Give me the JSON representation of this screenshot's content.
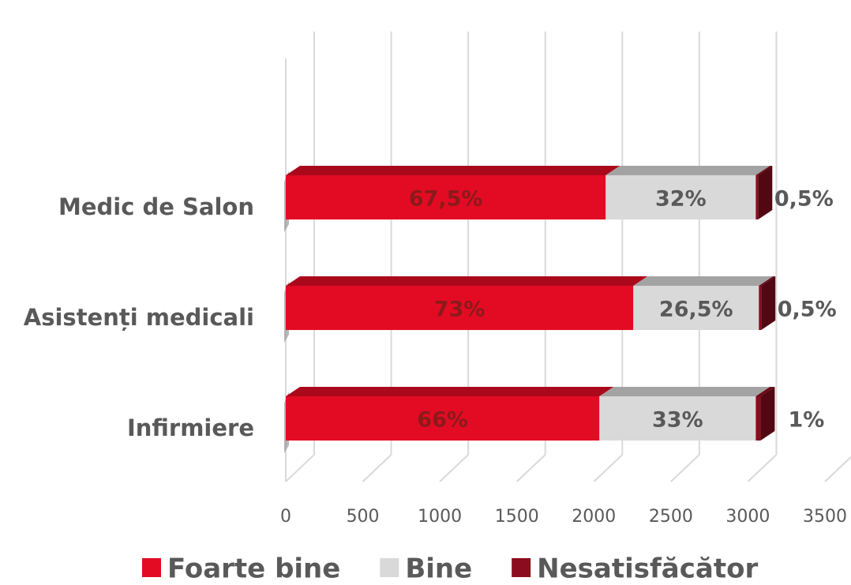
{
  "chart_data": {
    "type": "bar3d_stacked_horizontal",
    "categories": [
      "Medic de Salon",
      "Asistenți medicali",
      "Infirmiere"
    ],
    "series": [
      {
        "name": "Foarte bine",
        "color": "#e30b24",
        "label_color": "#8b1a1a",
        "values": [
          2077,
          2256,
          2036
        ],
        "shares": [
          67.5,
          73,
          66
        ],
        "share_labels": [
          "67,5%",
          "73%",
          "66%"
        ]
      },
      {
        "name": "Bine",
        "color": "#d9d9d9",
        "label_color": "#595959",
        "values": [
          974,
          815,
          1015
        ],
        "shares": [
          32,
          26.5,
          33
        ],
        "share_labels": [
          "32%",
          "26,5%",
          "33%"
        ]
      },
      {
        "name": "Nesatisfăcător",
        "color": "#8b0c1e",
        "label_color": "#595959",
        "values": [
          15,
          15,
          31
        ],
        "shares": [
          0.5,
          0.5,
          1
        ],
        "share_labels": [
          "0,5%",
          "0,5%",
          "1%"
        ]
      }
    ],
    "xlim": [
      0,
      3500
    ],
    "xticks": [
      0,
      500,
      1000,
      1500,
      2000,
      2500,
      3000,
      3500
    ],
    "grid": true,
    "legend": "bottom"
  }
}
